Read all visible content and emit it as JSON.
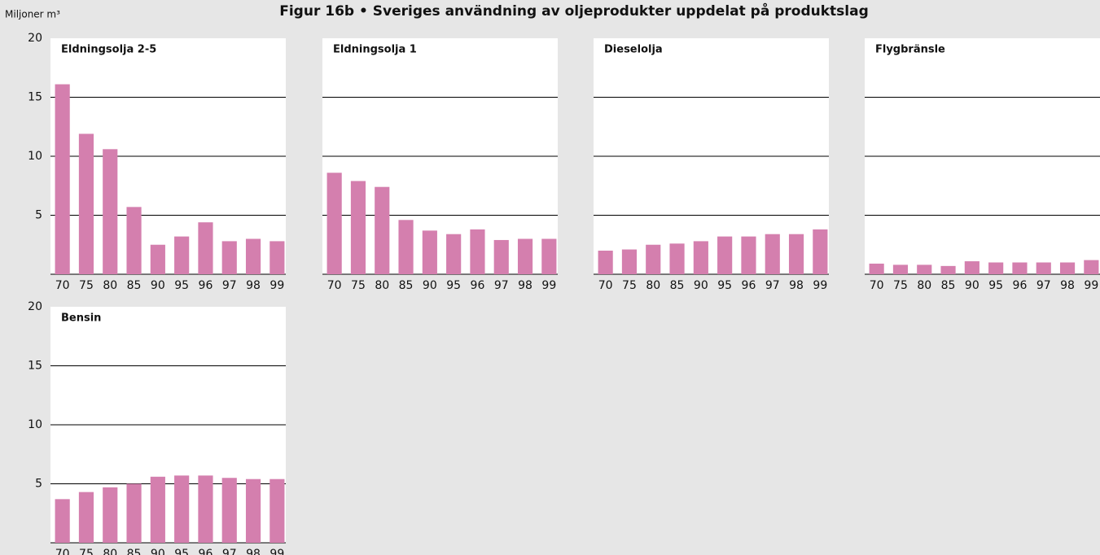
{
  "title": "Figur 16b • Sveriges användning av oljeprodukter uppdelat på produktslag",
  "y_label": "Miljoner m³",
  "chart_data": [
    {
      "type": "bar",
      "title": "Eldningsolja 2-5",
      "categories": [
        "70",
        "75",
        "80",
        "85",
        "90",
        "95",
        "96",
        "97",
        "98",
        "99"
      ],
      "values": [
        16.1,
        11.9,
        10.6,
        5.7,
        2.5,
        3.2,
        4.4,
        2.8,
        3.0,
        2.8
      ],
      "color": "#d47fae",
      "ylim": [
        0,
        20
      ],
      "yticks": [
        5,
        10,
        15,
        20
      ],
      "grid": true
    },
    {
      "type": "bar",
      "title": "Eldningsolja 1",
      "categories": [
        "70",
        "75",
        "80",
        "85",
        "90",
        "95",
        "96",
        "97",
        "98",
        "99"
      ],
      "values": [
        8.6,
        7.9,
        7.4,
        4.6,
        3.7,
        3.4,
        3.8,
        2.9,
        3.0,
        3.0
      ],
      "color": "#d47fae",
      "ylim": [
        0,
        20
      ],
      "yticks": [
        5,
        10,
        15,
        20
      ],
      "grid": true
    },
    {
      "type": "bar",
      "title": "Dieselolja",
      "categories": [
        "70",
        "75",
        "80",
        "85",
        "90",
        "95",
        "96",
        "97",
        "98",
        "99"
      ],
      "values": [
        2.0,
        2.1,
        2.5,
        2.6,
        2.8,
        3.2,
        3.2,
        3.4,
        3.4,
        3.8
      ],
      "color": "#d47fae",
      "ylim": [
        0,
        20
      ],
      "yticks": [
        5,
        10,
        15,
        20
      ],
      "grid": true
    },
    {
      "type": "bar",
      "title": "Flygbränsle",
      "categories": [
        "70",
        "75",
        "80",
        "85",
        "90",
        "95",
        "96",
        "97",
        "98",
        "99"
      ],
      "values": [
        0.9,
        0.8,
        0.8,
        0.7,
        1.1,
        1.0,
        1.0,
        1.0,
        1.0,
        1.2
      ],
      "color": "#d47fae",
      "ylim": [
        0,
        20
      ],
      "yticks": [
        5,
        10,
        15,
        20
      ],
      "grid": true
    },
    {
      "type": "bar",
      "title": "Bensin",
      "categories": [
        "70",
        "75",
        "80",
        "85",
        "90",
        "95",
        "96",
        "97",
        "98",
        "99"
      ],
      "values": [
        3.7,
        4.3,
        4.7,
        5.0,
        5.6,
        5.7,
        5.7,
        5.5,
        5.4,
        5.4
      ],
      "color": "#d47fae",
      "ylim": [
        0,
        20
      ],
      "yticks": [
        5,
        10,
        15,
        20
      ],
      "grid": true
    }
  ]
}
